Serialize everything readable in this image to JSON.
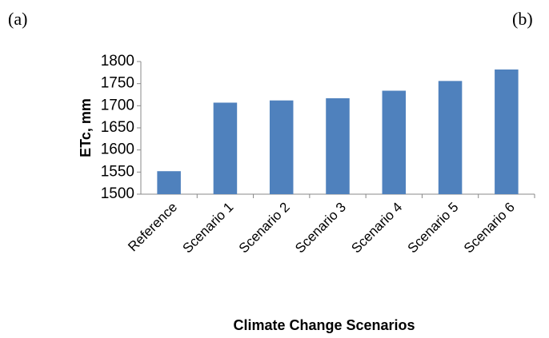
{
  "panel_labels": [
    "(a)",
    "(b)"
  ],
  "chart_data": {
    "type": "bar",
    "y_label": "ETc, mm",
    "x_label": "Climate Change Scenarios",
    "categories": [
      "Reference",
      "Scenario 1",
      "Scenario 2",
      "Scenario 3",
      "Scenario 4",
      "Scenario 5",
      "Scenario 6"
    ],
    "values": [
      1552,
      1707,
      1712,
      1717,
      1734,
      1756,
      1782
    ],
    "color": "#4f81bd",
    "ylim": [
      1500,
      1800
    ],
    "yticks": [
      1500,
      1550,
      1600,
      1650,
      1700,
      1750,
      1800
    ],
    "grid": false
  }
}
